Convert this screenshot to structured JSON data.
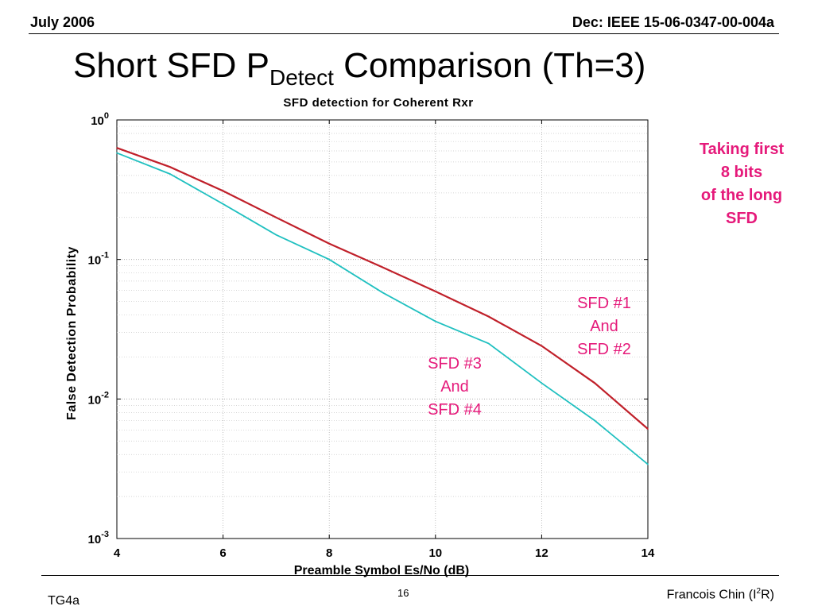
{
  "header": {
    "left": "July 2006",
    "right": "Dec: IEEE 15-06-0347-00-004a"
  },
  "slide_title": {
    "main": "Short SFD P",
    "subscript": "Detect",
    "rest": " Comparison (Th=3)"
  },
  "notes": {
    "taking_first": [
      "Taking first",
      "8 bits",
      "of the long",
      "SFD"
    ],
    "sfd12": [
      "SFD #1",
      "And",
      "SFD #2"
    ],
    "sfd34": [
      "SFD #3",
      "And",
      "SFD #4"
    ]
  },
  "footer": {
    "left": "TG4a",
    "page": "16",
    "right_main": "Francois Chin (I",
    "right_sup": "2",
    "right_end": "R)"
  },
  "colors": {
    "sfd12": "#c0202a",
    "sfd34": "#20c0c0",
    "note": "#e5197a"
  },
  "chart_data": {
    "type": "line",
    "title": "SFD detection for Coherent Rxr",
    "xlabel": "Preamble Symbol Es/No (dB)",
    "ylabel": "False Detection Probability",
    "xlim": [
      4,
      14
    ],
    "ylim": [
      0.001,
      1
    ],
    "yscale": "log",
    "grid": true,
    "x_ticks": [
      "4",
      "6",
      "8",
      "10",
      "12",
      "14"
    ],
    "y_ticks": [
      {
        "base": "10",
        "exp": "0"
      },
      {
        "base": "10",
        "exp": "-1"
      },
      {
        "base": "10",
        "exp": "-2"
      },
      {
        "base": "10",
        "exp": "-3"
      }
    ],
    "x": [
      4,
      5,
      6,
      7,
      8,
      9,
      10,
      11,
      12,
      13,
      14
    ],
    "series": [
      {
        "key": "sfd12",
        "values": [
          0.63,
          0.46,
          0.31,
          0.2,
          0.13,
          0.088,
          0.059,
          0.039,
          0.024,
          0.013,
          0.0061
        ]
      },
      {
        "key": "sfd34",
        "values": [
          0.58,
          0.41,
          0.25,
          0.15,
          0.1,
          0.058,
          0.036,
          0.025,
          0.013,
          0.007,
          0.0034
        ]
      }
    ]
  }
}
